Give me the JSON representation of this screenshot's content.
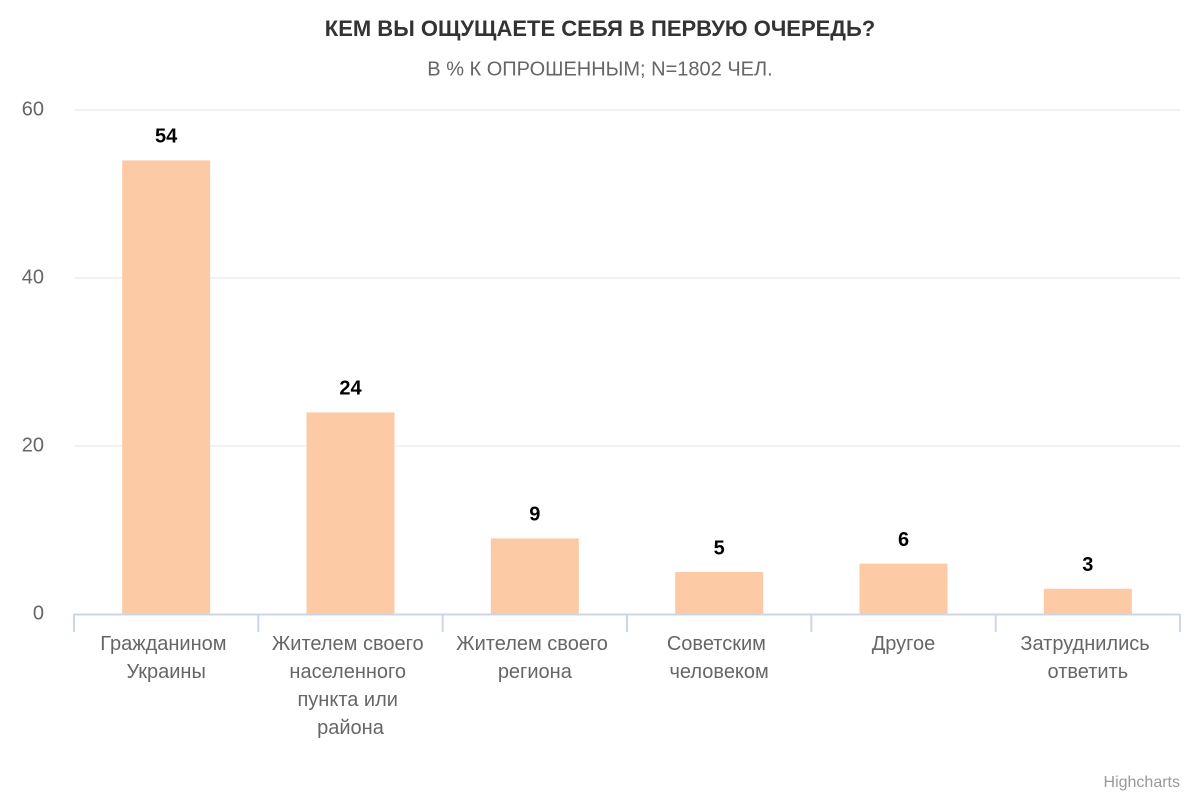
{
  "chart_data": {
    "type": "bar",
    "title": "КЕМ ВЫ ОЩУЩАЕТЕ СЕБЯ В ПЕРВУЮ ОЧЕРЕДЬ?",
    "subtitle": "В % К ОПРОШЕННЫМ; N=1802 ЧЕЛ.",
    "categories": [
      "Гражданином Украины",
      "Жителем своего населенного пункта или района",
      "Жителем своего региона",
      "Советским человеком",
      "Другое",
      "Затруднились ответить"
    ],
    "values": [
      54,
      24,
      9,
      5,
      6,
      3
    ],
    "color": "#fccba6",
    "ylim": [
      0,
      60
    ],
    "yticks": [
      0,
      20,
      40,
      60
    ],
    "grid": true,
    "credits": "Highcharts"
  }
}
